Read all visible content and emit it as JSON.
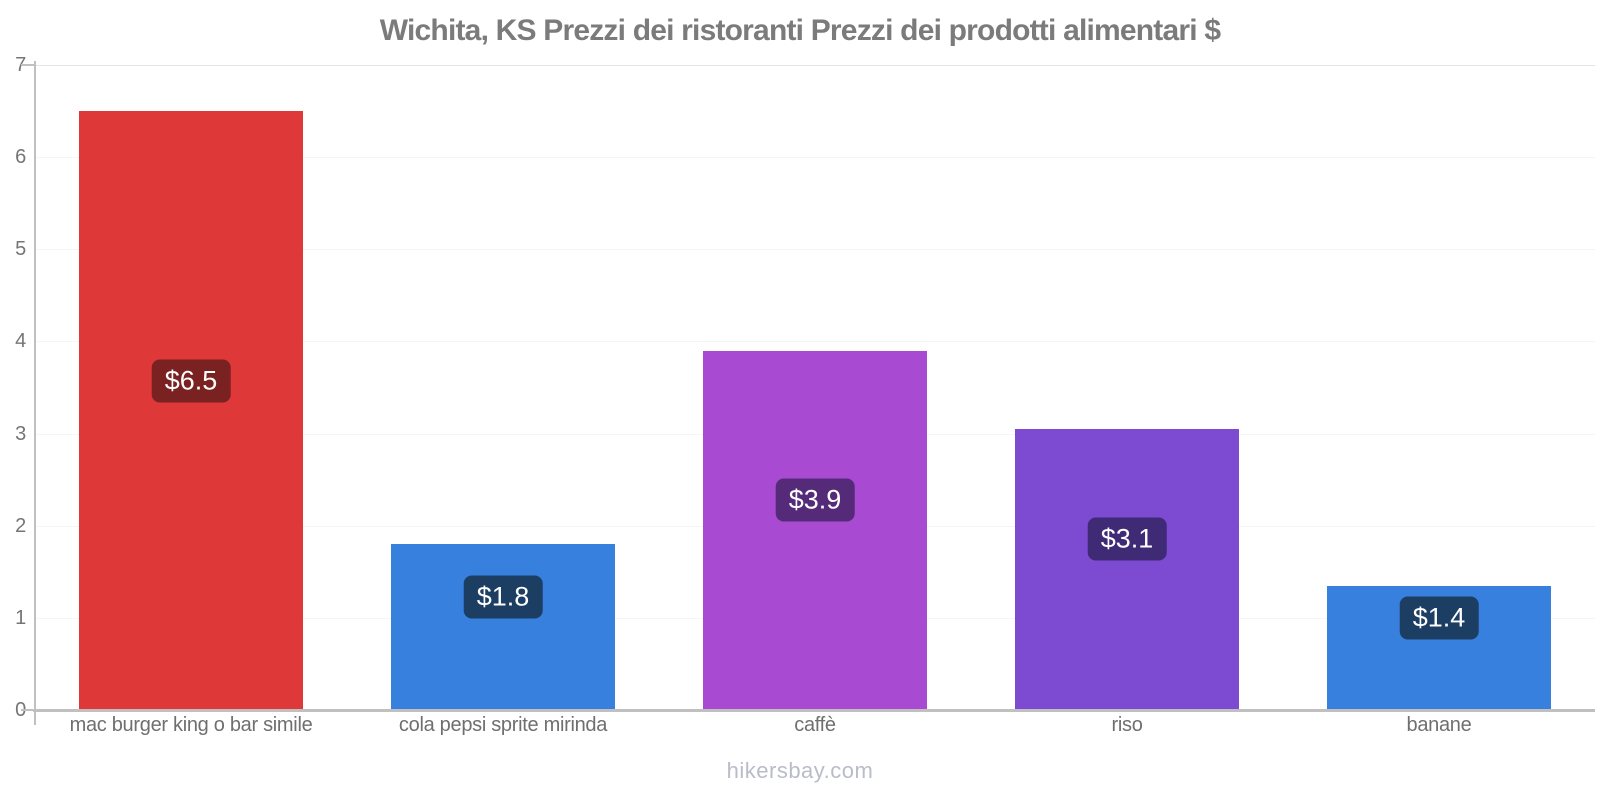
{
  "title": "Wichita, KS Prezzi dei ristoranti Prezzi dei prodotti alimentari $",
  "footer": "hikersbay.com",
  "chart_data": {
    "type": "bar",
    "title": "Wichita, KS Prezzi dei ristoranti Prezzi dei prodotti alimentari $",
    "categories": [
      "mac burger king o bar simile",
      "cola pepsi sprite mirinda",
      "caffè",
      "riso",
      "banane"
    ],
    "values": [
      6.5,
      1.8,
      3.9,
      3.05,
      1.35
    ],
    "value_labels": [
      "$6.5",
      "$1.8",
      "$3.9",
      "$3.1",
      "$1.4"
    ],
    "bar_colors": [
      "#de3838",
      "#3780dd",
      "#a94ad2",
      "#7d4ad2",
      "#3780dd"
    ],
    "badge_colors": [
      "#7a2121",
      "#1d3e63",
      "#552a78",
      "#3f2a76",
      "#1d3e63"
    ],
    "currency": "$",
    "xlabel": "",
    "ylabel": "",
    "ylim": [
      0,
      7
    ],
    "yticks": [
      0,
      1,
      2,
      3,
      4,
      5,
      6,
      7
    ],
    "grid": true,
    "legend": "none"
  },
  "colors": {
    "title_text": "#7b7b7b",
    "axis_line": "#c0c0c0",
    "grid_top": "#e4e4e4",
    "grid_minor": "#f5f5f5",
    "tick_text": "#757575",
    "x_tick_text": "#6f6f6f",
    "footer_text": "#b9bcc9",
    "background": "#ffffff"
  }
}
